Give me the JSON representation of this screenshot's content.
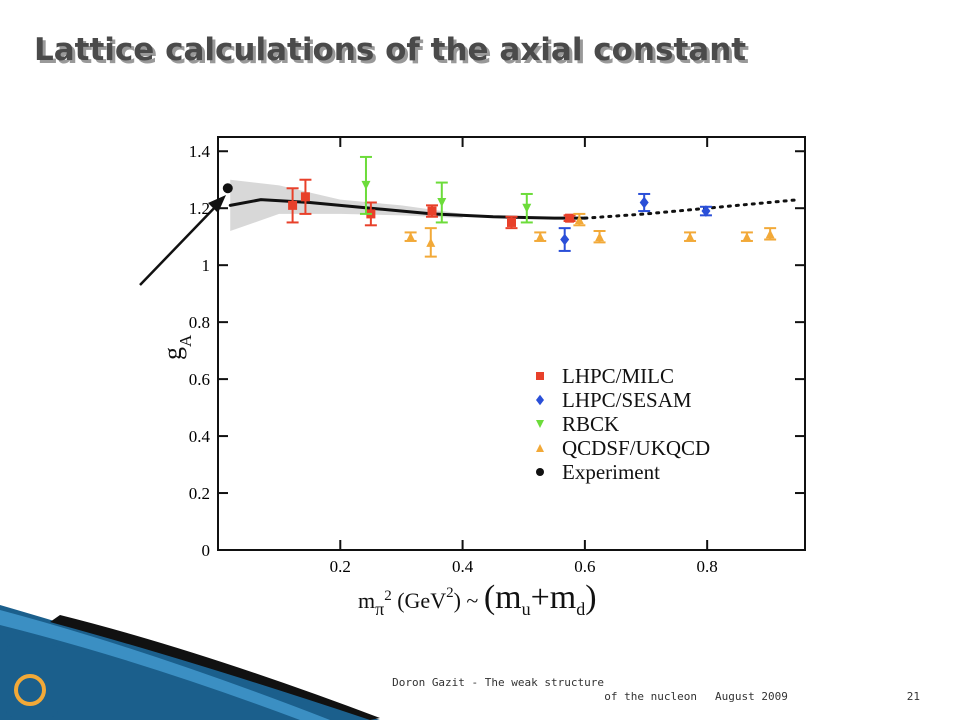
{
  "slide_title": "Lattice calculations of the axial constant",
  "footer": {
    "author_lines": [
      "Doron Gazit - The weak structure",
      "of the nucleon"
    ],
    "date": "August 2009",
    "page": "21"
  },
  "chart_data": {
    "type": "scatter",
    "ylabel": "g",
    "ylabel_sub": "A",
    "xlabel_parts": [
      "m",
      "π",
      "2",
      " (GeV",
      "2",
      ")",
      " ~ ",
      "(m",
      "u",
      "+m",
      "d",
      ")"
    ],
    "xlim": [
      0,
      0.96
    ],
    "ylim": [
      0,
      1.45
    ],
    "xticks": [
      0.2,
      0.4,
      0.6,
      0.8
    ],
    "yticks": [
      0,
      0.2,
      0.4,
      0.6,
      0.8,
      1,
      1.2,
      1.4
    ],
    "series": [
      {
        "name": "LHPC/MILC",
        "color": "#e8402a",
        "marker": "square",
        "x": [
          0.122,
          0.143,
          0.25,
          0.35,
          0.48,
          0.575
        ],
        "values": [
          1.21,
          1.24,
          1.18,
          1.19,
          1.15,
          1.165
        ],
        "errors": [
          0.06,
          0.06,
          0.04,
          0.02,
          0.02,
          0.01
        ]
      },
      {
        "name": "LHPC/SESAM",
        "color": "#2a4fd8",
        "marker": "diamond",
        "x": [
          0.567,
          0.697,
          0.798
        ],
        "values": [
          1.09,
          1.22,
          1.19
        ],
        "errors": [
          0.04,
          0.03,
          0.015
        ]
      },
      {
        "name": "RBCK",
        "color": "#6cdc3a",
        "marker": "down",
        "x": [
          0.242,
          0.366,
          0.505
        ],
        "values": [
          1.28,
          1.22,
          1.2
        ],
        "errors": [
          0.1,
          0.07,
          0.05
        ]
      },
      {
        "name": "QCDSF/UKQCD",
        "color": "#f2a938",
        "marker": "up",
        "x": [
          0.315,
          0.348,
          0.527,
          0.591,
          0.624,
          0.772,
          0.865,
          0.903
        ],
        "values": [
          1.1,
          1.08,
          1.1,
          1.16,
          1.1,
          1.1,
          1.1,
          1.11
        ],
        "errors": [
          0.015,
          0.05,
          0.015,
          0.02,
          0.02,
          0.015,
          0.015,
          0.02
        ]
      },
      {
        "name": "Experiment",
        "color": "#111111",
        "marker": "circle",
        "x": [
          0.016
        ],
        "values": [
          1.27
        ]
      }
    ],
    "fit_solid": {
      "x": [
        0.02,
        0.07,
        0.15,
        0.25,
        0.35,
        0.45,
        0.55,
        0.6
      ],
      "values": [
        1.21,
        1.23,
        1.22,
        1.2,
        1.18,
        1.17,
        1.165,
        1.165
      ]
    },
    "fit_dotted": {
      "x": [
        0.6,
        0.7,
        0.8,
        0.95
      ],
      "values": [
        1.165,
        1.18,
        1.2,
        1.23
      ]
    },
    "band": {
      "x": [
        0.02,
        0.1,
        0.2,
        0.3,
        0.4
      ],
      "upper": [
        1.3,
        1.28,
        1.23,
        1.21,
        1.18
      ],
      "lower": [
        1.12,
        1.18,
        1.18,
        1.175,
        1.165
      ]
    }
  }
}
